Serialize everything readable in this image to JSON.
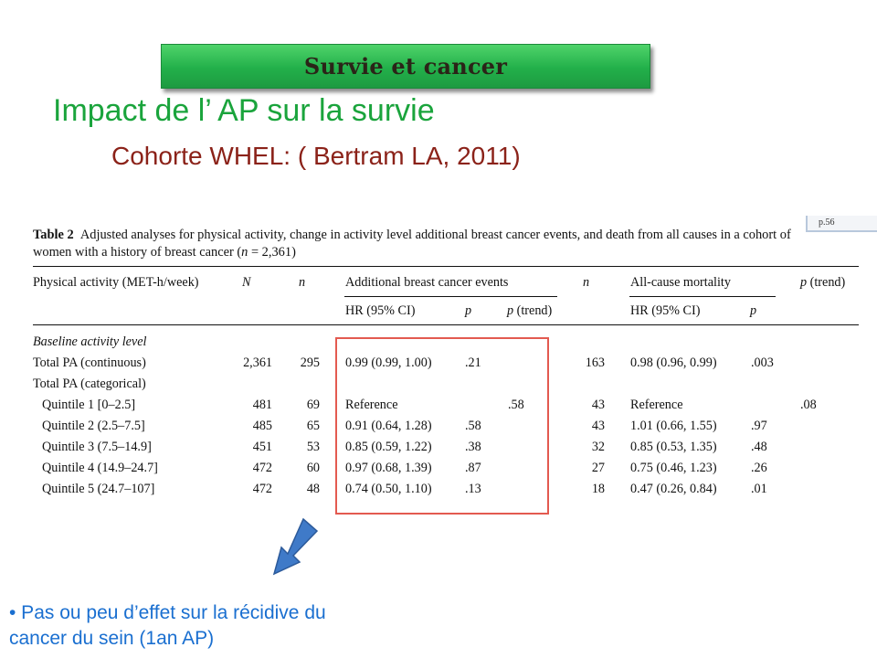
{
  "banner": "Survie et cancer",
  "title": "Impact de l’ AP sur la survie",
  "subtitle": "Cohorte WHEL: ( Bertram LA, 2011)",
  "clip_tag": "p.56",
  "table": {
    "caption_label": "Table 2",
    "caption_line1": "Adjusted analyses for physical activity, change in activity level additional breast cancer events, and death from all causes in a cohort of",
    "caption_line2_a": "women with a history of breast cancer (",
    "caption_line2_n": "n",
    "caption_line2_b": " = 2,361)",
    "headers": {
      "col_activity": "Physical activity (MET-h/week)",
      "col_N": "N",
      "col_n1": "n",
      "group1": "Additional breast cancer events",
      "col_n2": "n",
      "group2": "All-cause mortality",
      "col_ptrend2": "p (trend)",
      "sub_hr1": "HR (95% CI)",
      "sub_p1": "p",
      "sub_ptrend1": "p (trend)",
      "sub_hr2": "HR (95% CI)",
      "sub_p2": "p"
    },
    "section_label": "Baseline activity level",
    "rows": [
      {
        "label": "Total PA (continuous)",
        "N": "2,361",
        "n1": "295",
        "hr1": "0.99 (0.99, 1.00)",
        "p1": ".21",
        "pt1": "",
        "n2": "163",
        "hr2": "0.98 (0.96, 0.99)",
        "p2": ".003",
        "pt2": ""
      },
      {
        "label": "Total PA (categorical)",
        "N": "",
        "n1": "",
        "hr1": "",
        "p1": "",
        "pt1": "",
        "n2": "",
        "hr2": "",
        "p2": "",
        "pt2": ""
      },
      {
        "label": "Quintile 1 [0–2.5]",
        "N": "481",
        "n1": "69",
        "hr1": "Reference",
        "p1": "",
        "pt1": ".58",
        "n2": "43",
        "hr2": "Reference",
        "p2": "",
        "pt2": ".08"
      },
      {
        "label": "Quintile 2 (2.5–7.5]",
        "N": "485",
        "n1": "65",
        "hr1": "0.91 (0.64, 1.28)",
        "p1": ".58",
        "pt1": "",
        "n2": "43",
        "hr2": "1.01 (0.66, 1.55)",
        "p2": ".97",
        "pt2": ""
      },
      {
        "label": "Quintile 3 (7.5–14.9]",
        "N": "451",
        "n1": "53",
        "hr1": "0.85 (0.59, 1.22)",
        "p1": ".38",
        "pt1": "",
        "n2": "32",
        "hr2": "0.85 (0.53, 1.35)",
        "p2": ".48",
        "pt2": ""
      },
      {
        "label": "Quintile 4 (14.9–24.7]",
        "N": "472",
        "n1": "60",
        "hr1": "0.97 (0.68, 1.39)",
        "p1": ".87",
        "pt1": "",
        "n2": "27",
        "hr2": "0.75 (0.46, 1.23)",
        "p2": ".26",
        "pt2": ""
      },
      {
        "label": "Quintile 5 (24.7–107]",
        "N": "472",
        "n1": "48",
        "hr1": "0.74 (0.50, 1.10)",
        "p1": ".13",
        "pt1": "",
        "n2": "18",
        "hr2": "0.47 (0.26, 0.84)",
        "p2": ".01",
        "pt2": ""
      }
    ]
  },
  "bullet_line1": "• Pas ou peu d’effet sur la récidive du",
  "bullet_line2": "cancer du sein (1an AP)",
  "colors": {
    "banner": "#22b04a",
    "title": "#1aa43c",
    "subtitle": "#8b2219",
    "highlight_box": "#e35a50",
    "arrow": "#3f7ac8",
    "bullet": "#1a6fd0"
  }
}
